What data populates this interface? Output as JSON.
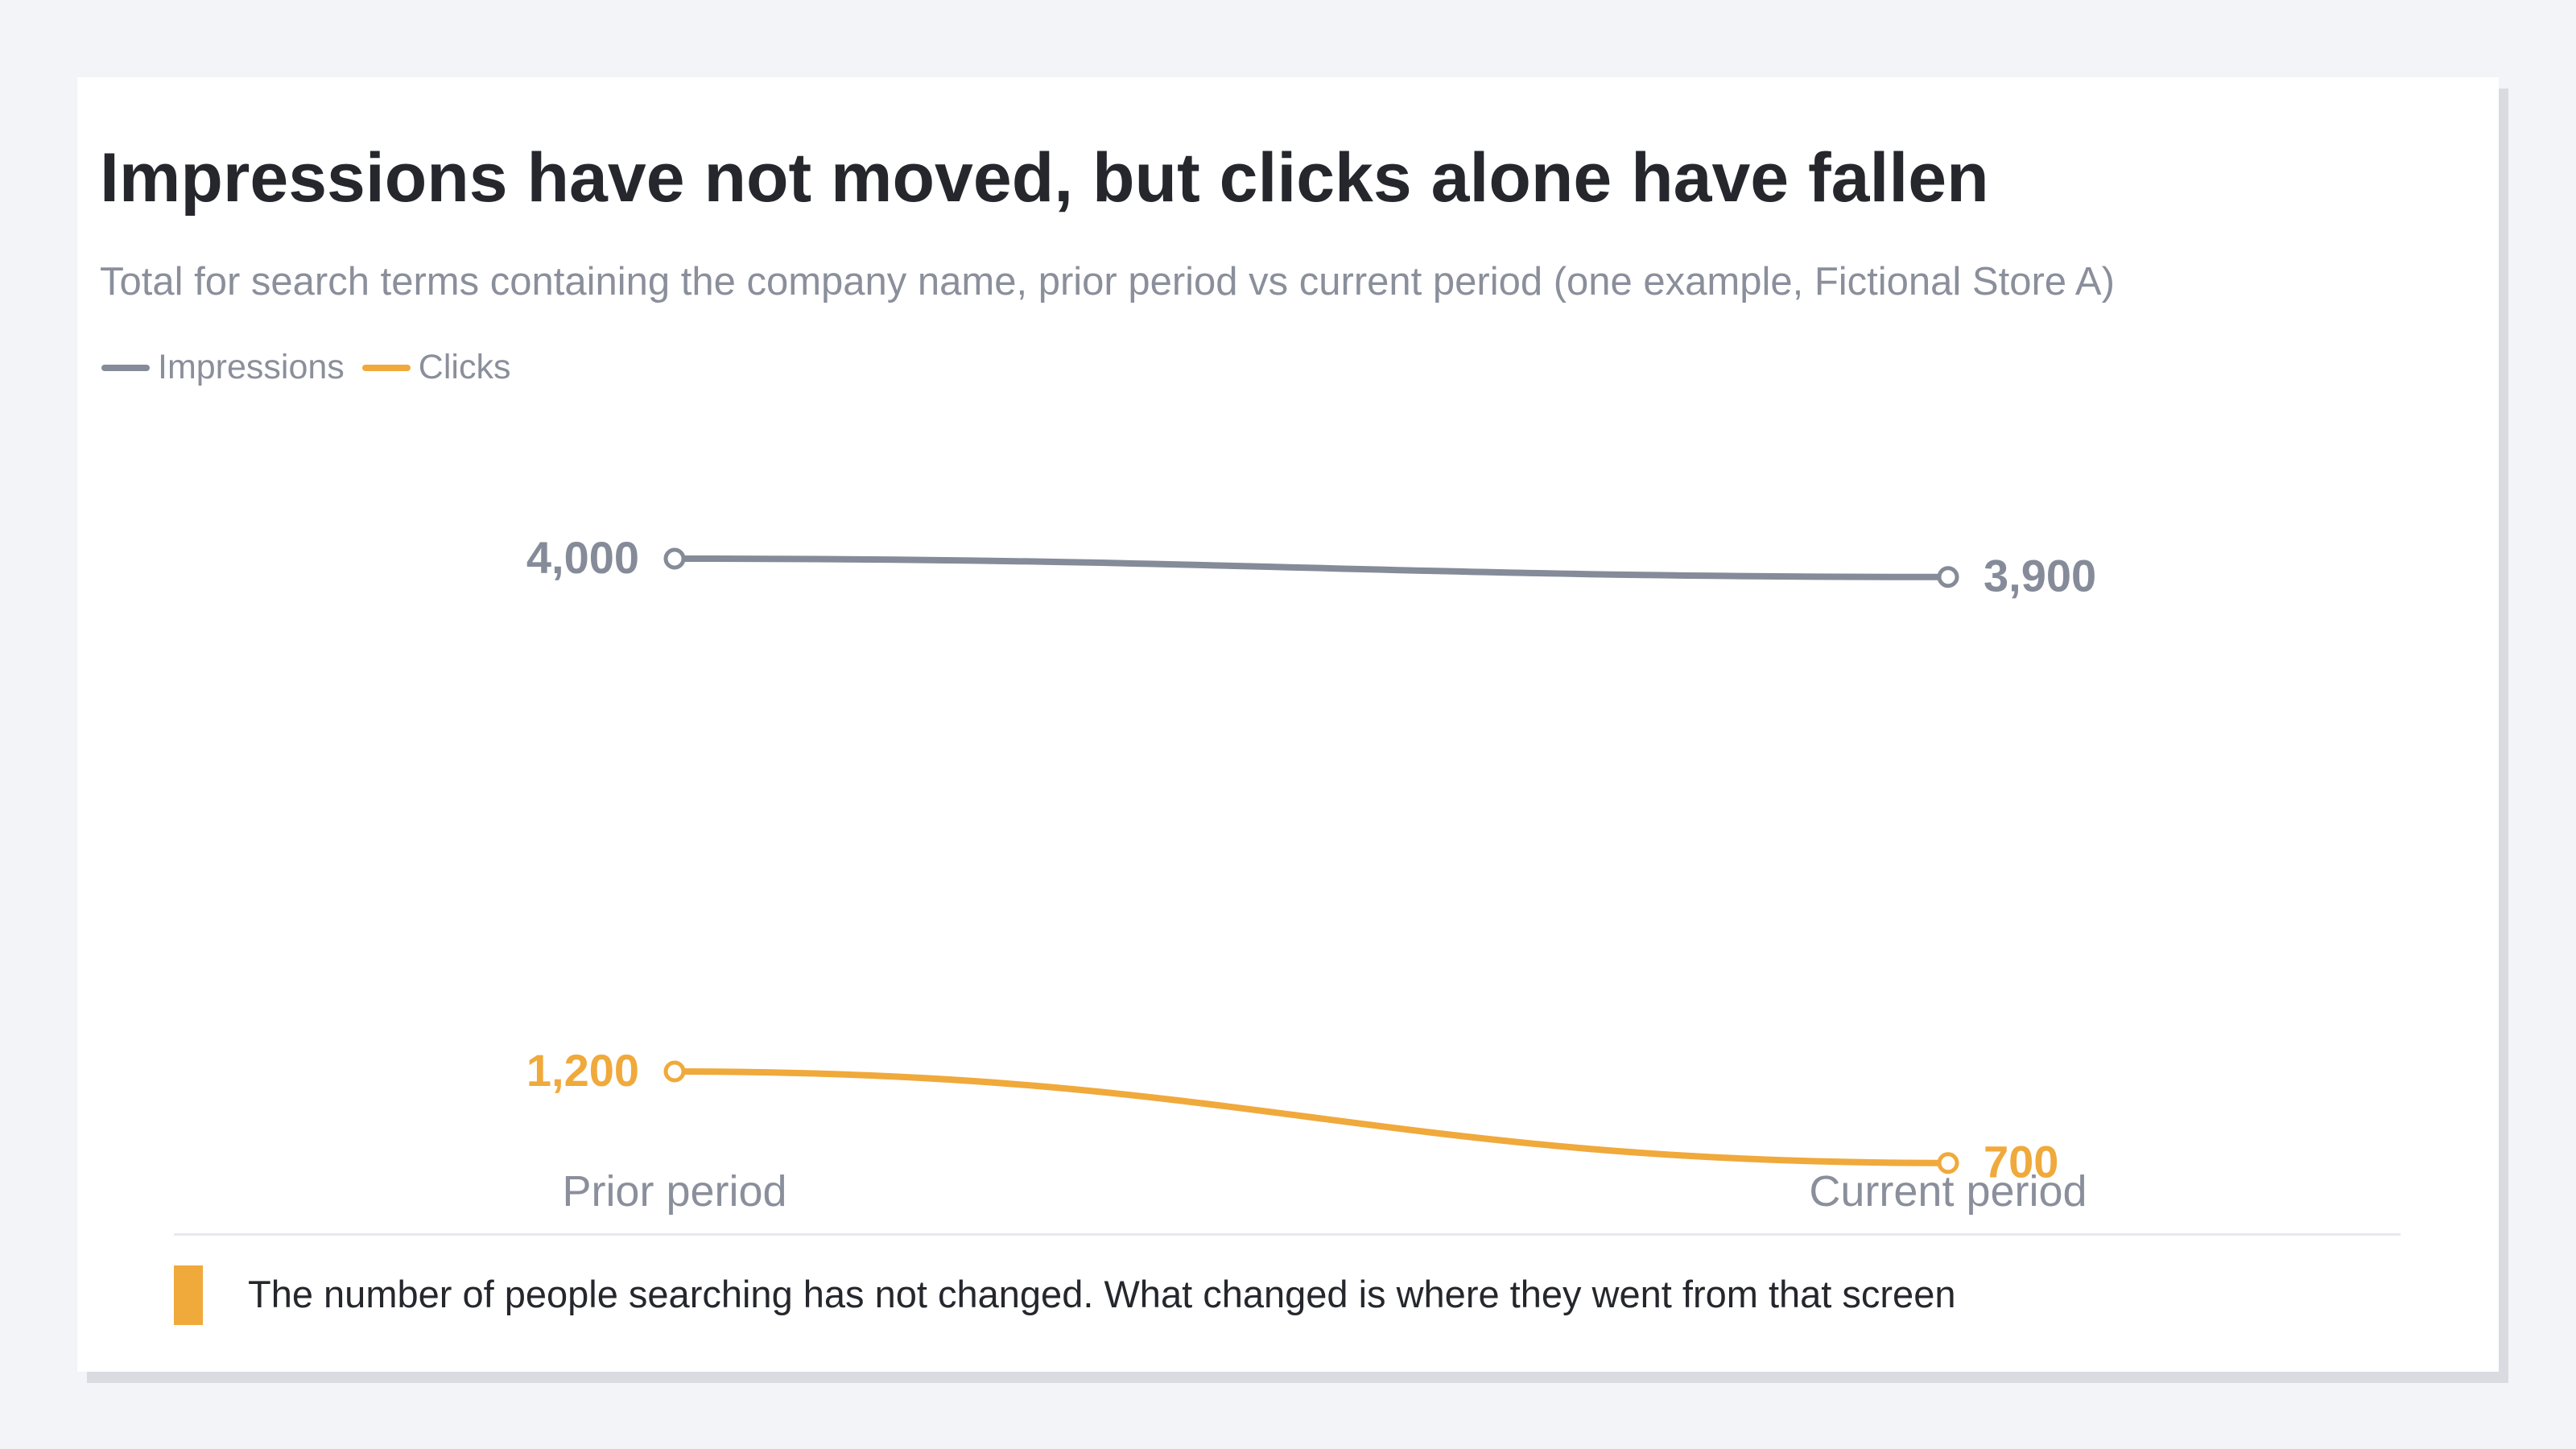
{
  "title": "Impressions have not moved, but clicks alone have fallen",
  "subtitle": "Total for search terms containing the company name, prior period vs current period (one example, Fictional Store A)",
  "note": "The number of people searching has not changed. What changed is where they went from that screen",
  "colors": {
    "impressions": "#858b98",
    "clicks": "#f0a93b",
    "title": "#25272d",
    "muted": "#8a8f9b",
    "accent_bar": "#f0a93b"
  },
  "chart_data": {
    "type": "line",
    "categories": [
      "Prior period",
      "Current period"
    ],
    "series": [
      {
        "name": "Impressions",
        "values": [
          4000,
          3900
        ],
        "labels": [
          "4,000",
          "3,900"
        ],
        "color": "#858b98"
      },
      {
        "name": "Clicks",
        "values": [
          1200,
          700
        ],
        "labels": [
          "1,200",
          "700"
        ],
        "color": "#f0a93b"
      }
    ],
    "title": "Impressions have not moved, but clicks alone have fallen",
    "xlabel": "",
    "ylabel": "",
    "grid": false,
    "legend_position": "top-left",
    "point_markers": "hollow-circle"
  }
}
